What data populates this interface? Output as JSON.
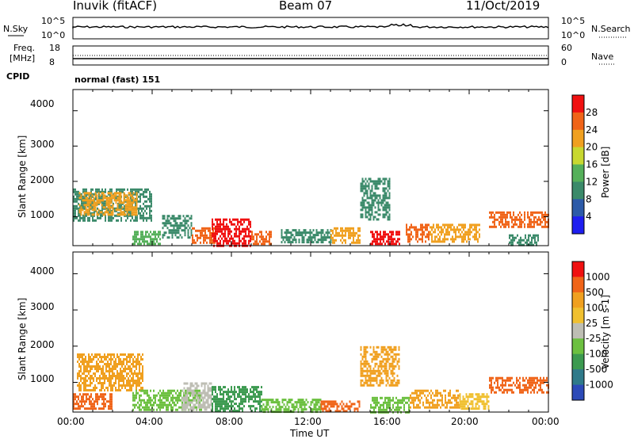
{
  "header": {
    "station": "Inuvik (fitACF)",
    "beam": "Beam 07",
    "date": "11/Oct/2019"
  },
  "noise_panel": {
    "left_label": "N.Sky",
    "right_label": "N.Search",
    "left_ticks": [
      "10^5",
      "10^0"
    ],
    "right_ticks": [
      "10^5",
      "10^0"
    ]
  },
  "freq_panel": {
    "left_label_1": "Freq.",
    "left_label_2": "[MHz]",
    "right_label": "Nave",
    "left_ticks": [
      "18",
      "8"
    ],
    "right_ticks": [
      "60",
      "0"
    ]
  },
  "cpid": {
    "label": "CPID",
    "value": "normal (fast) 151"
  },
  "x_axis": {
    "label": "Time UT",
    "ticks": [
      "00:00",
      "04:00",
      "08:00",
      "12:00",
      "16:00",
      "20:00",
      "00:00"
    ]
  },
  "chart_data": [
    {
      "type": "heatmap",
      "quantity": "Power",
      "ylabel": "Slant Range [km]",
      "yticks": [
        "1000",
        "2000",
        "3000",
        "4000"
      ],
      "ylim": [
        180,
        4600
      ],
      "xlim_hours": [
        0,
        24
      ],
      "colorbar_label": "Power [dB]",
      "colorbar_ticks": [
        "4",
        "8",
        "12",
        "16",
        "20",
        "24",
        "28"
      ],
      "colorbar_colors": [
        "#1e1ef0",
        "#2c5aa8",
        "#3b8a6a",
        "#55b05a",
        "#c8d830",
        "#f0a020",
        "#f06418",
        "#f01010"
      ],
      "regions": [
        {
          "t0": 0.0,
          "t1": 4.0,
          "r0": 900,
          "r1": 1800,
          "color": "#3b8a6a"
        },
        {
          "t0": 0.3,
          "t1": 3.2,
          "r0": 1050,
          "r1": 1700,
          "color": "#f0a020"
        },
        {
          "t0": 3.0,
          "t1": 4.4,
          "r0": 250,
          "r1": 600,
          "color": "#55b05a"
        },
        {
          "t0": 4.5,
          "t1": 6.0,
          "r0": 400,
          "r1": 1050,
          "color": "#3b8a6a"
        },
        {
          "t0": 6.0,
          "t1": 7.2,
          "r0": 250,
          "r1": 700,
          "color": "#f06418"
        },
        {
          "t0": 7.0,
          "t1": 9.0,
          "r0": 200,
          "r1": 950,
          "color": "#f01010"
        },
        {
          "t0": 9.0,
          "t1": 10.0,
          "r0": 250,
          "r1": 600,
          "color": "#f06418"
        },
        {
          "t0": 10.5,
          "t1": 13.0,
          "r0": 250,
          "r1": 650,
          "color": "#3b8a6a"
        },
        {
          "t0": 13.0,
          "t1": 14.5,
          "r0": 250,
          "r1": 700,
          "color": "#f0a020"
        },
        {
          "t0": 14.5,
          "t1": 16.0,
          "r0": 900,
          "r1": 2100,
          "color": "#3b8a6a"
        },
        {
          "t0": 15.0,
          "t1": 16.5,
          "r0": 200,
          "r1": 600,
          "color": "#f01010"
        },
        {
          "t0": 16.8,
          "t1": 18.0,
          "r0": 300,
          "r1": 800,
          "color": "#f06418"
        },
        {
          "t0": 18.0,
          "t1": 20.5,
          "r0": 300,
          "r1": 800,
          "color": "#f0a020"
        },
        {
          "t0": 21.0,
          "t1": 24.0,
          "r0": 700,
          "r1": 1150,
          "color": "#f06418"
        },
        {
          "t0": 22.0,
          "t1": 23.5,
          "r0": 200,
          "r1": 500,
          "color": "#3b8a6a"
        }
      ]
    },
    {
      "type": "heatmap",
      "quantity": "Velocity",
      "ylabel": "Slant Range [km]",
      "yticks": [
        "1000",
        "2000",
        "3000",
        "4000"
      ],
      "ylim": [
        180,
        4600
      ],
      "xlim_hours": [
        0,
        24
      ],
      "colorbar_label": "Velocity [m s-1]",
      "colorbar_ticks": [
        "1000",
        "500",
        "100",
        "25",
        "-25",
        "-100",
        "-500",
        "-1000"
      ],
      "colorbar_colors": [
        "#2c4ab8",
        "#2f7a8a",
        "#3c9a50",
        "#6cc040",
        "#bebeb4",
        "#f0c030",
        "#f0a020",
        "#f06418",
        "#f01010"
      ],
      "regions": [
        {
          "t0": 0.2,
          "t1": 3.5,
          "r0": 800,
          "r1": 1800,
          "color": "#f0a020"
        },
        {
          "t0": 0.0,
          "t1": 2.0,
          "r0": 250,
          "r1": 700,
          "color": "#f06418"
        },
        {
          "t0": 3.0,
          "t1": 6.5,
          "r0": 250,
          "r1": 800,
          "color": "#6cc040"
        },
        {
          "t0": 5.5,
          "t1": 7.0,
          "r0": 250,
          "r1": 1000,
          "color": "#bebeb4"
        },
        {
          "t0": 7.0,
          "t1": 9.5,
          "r0": 200,
          "r1": 900,
          "color": "#3c9a50"
        },
        {
          "t0": 9.5,
          "t1": 12.5,
          "r0": 200,
          "r1": 550,
          "color": "#6cc040"
        },
        {
          "t0": 12.5,
          "t1": 14.5,
          "r0": 200,
          "r1": 500,
          "color": "#f06418"
        },
        {
          "t0": 14.5,
          "t1": 16.5,
          "r0": 900,
          "r1": 2000,
          "color": "#f0a020"
        },
        {
          "t0": 15.0,
          "t1": 17.0,
          "r0": 200,
          "r1": 600,
          "color": "#6cc040"
        },
        {
          "t0": 17.0,
          "t1": 19.5,
          "r0": 300,
          "r1": 800,
          "color": "#f0a020"
        },
        {
          "t0": 19.5,
          "t1": 21.0,
          "r0": 300,
          "r1": 700,
          "color": "#f0c030"
        },
        {
          "t0": 21.0,
          "t1": 24.0,
          "r0": 700,
          "r1": 1150,
          "color": "#f06418"
        }
      ]
    }
  ]
}
